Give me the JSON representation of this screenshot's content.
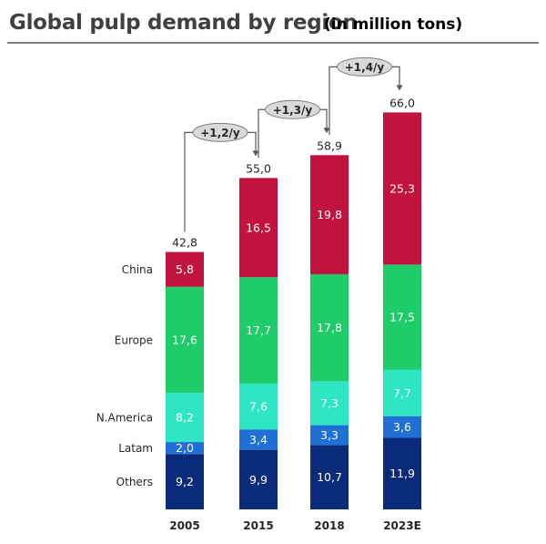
{
  "title": "Global pulp demand by region",
  "subtitle": "(in million tons)",
  "colors": {
    "Others": "#0a2a7a",
    "Latam": "#1f6fd6",
    "N.America": "#2ee6c4",
    "Europe": "#1fcc6a",
    "China": "#c2133f",
    "growth_pill": "#d9d9d9",
    "connector": "#595959"
  },
  "chart_data": {
    "type": "bar",
    "stacked": true,
    "categories": [
      "2005",
      "2015",
      "2018",
      "2023E"
    ],
    "series": [
      {
        "name": "Others",
        "values": [
          9.2,
          9.9,
          10.7,
          11.9
        ],
        "labels": [
          "9,2",
          "9,9",
          "10,7",
          "11,9"
        ]
      },
      {
        "name": "Latam",
        "values": [
          2.0,
          3.4,
          3.3,
          3.6
        ],
        "labels": [
          "2,0",
          "3,4",
          "3,3",
          "3,6"
        ]
      },
      {
        "name": "N.America",
        "values": [
          8.2,
          7.6,
          7.3,
          7.7
        ],
        "labels": [
          "8,2",
          "7,6",
          "7,3",
          "7,7"
        ]
      },
      {
        "name": "Europe",
        "values": [
          17.6,
          17.7,
          17.8,
          17.5
        ],
        "labels": [
          "17,6",
          "17,7",
          "17,8",
          "17,5"
        ]
      },
      {
        "name": "China",
        "values": [
          5.8,
          16.5,
          19.8,
          25.3
        ],
        "labels": [
          "5,8",
          "16,5",
          "19,8",
          "25,3"
        ]
      }
    ],
    "totals": [
      42.8,
      55.0,
      58.9,
      66.0
    ],
    "total_labels": [
      "42,8",
      "55,0",
      "58,9",
      "66,0"
    ],
    "growth_annotations": [
      {
        "from": "2005",
        "to": "2015",
        "label": "+1,2/y"
      },
      {
        "from": "2015",
        "to": "2018",
        "label": "+1,3/y"
      },
      {
        "from": "2018",
        "to": "2023E",
        "label": "+1,4/y"
      }
    ],
    "legend": "left row labels",
    "grid": false
  }
}
